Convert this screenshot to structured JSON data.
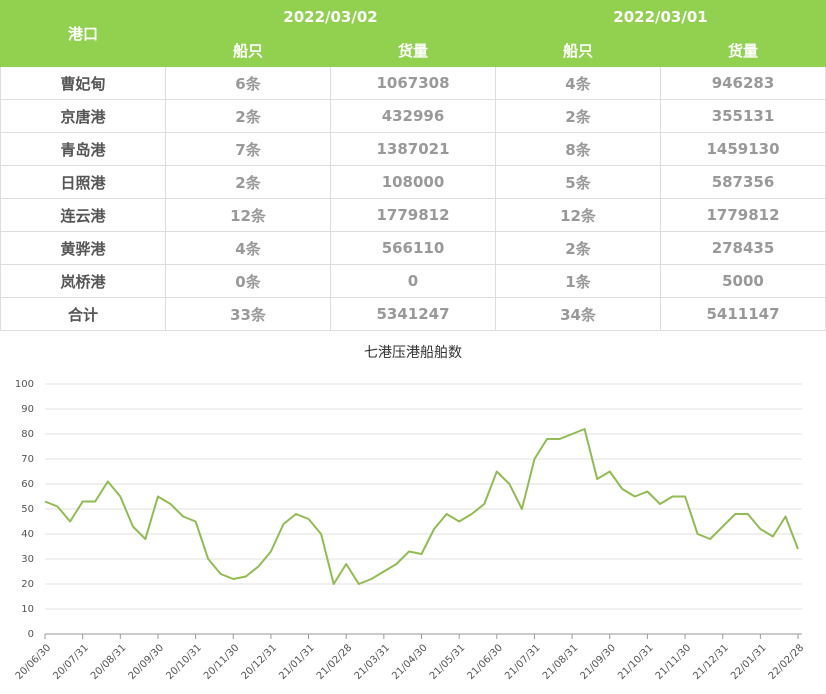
{
  "table": {
    "header": {
      "port": "港口",
      "dates": [
        "2022/03/02",
        "2022/03/01"
      ],
      "sub": [
        "船只",
        "货量",
        "船只",
        "货量"
      ]
    },
    "rows": [
      [
        "曹妃甸",
        "6条",
        1067308,
        "4条",
        946283
      ],
      [
        "京唐港",
        "2条",
        432996,
        "2条",
        355131
      ],
      [
        "青岛港",
        "7条",
        1387021,
        "8条",
        1459130
      ],
      [
        "日照港",
        "2条",
        108000,
        "5条",
        587356
      ],
      [
        "连云港",
        "12条",
        1779812,
        "12条",
        1779812
      ],
      [
        "黄骅港",
        "4条",
        566110,
        "2条",
        278435
      ],
      [
        "岚桥港",
        "0条",
        0,
        "1条",
        5000
      ],
      [
        "合计",
        "33条",
        5341247,
        "34条",
        5411147
      ]
    ]
  },
  "chart_data": {
    "type": "line",
    "title": "七港压港船舶数",
    "color": "#92bc53",
    "grid": true,
    "ylim": [
      0,
      100
    ],
    "yticks": [
      0,
      10,
      20,
      30,
      40,
      50,
      60,
      70,
      80,
      90,
      100
    ],
    "categories": [
      "20/06/30",
      null,
      null,
      "20/07/31",
      null,
      null,
      "20/08/31",
      null,
      null,
      "20/09/30",
      null,
      null,
      "20/10/31",
      null,
      null,
      "20/11/30",
      null,
      null,
      "20/12/31",
      null,
      null,
      "21/01/31",
      null,
      null,
      "21/02/28",
      null,
      null,
      "21/03/31",
      null,
      null,
      "21/04/30",
      null,
      null,
      "21/05/31",
      null,
      null,
      "21/06/30",
      null,
      null,
      "21/07/31",
      null,
      null,
      "21/08/31",
      null,
      null,
      "21/09/30",
      null,
      null,
      "21/10/31",
      null,
      null,
      "21/11/30",
      null,
      null,
      "21/12/31",
      null,
      null,
      "22/01/31",
      null,
      null,
      "22/02/28"
    ],
    "values": [
      53,
      51,
      45,
      53,
      53,
      61,
      55,
      43,
      38,
      55,
      52,
      47,
      45,
      30,
      24,
      22,
      23,
      27,
      33,
      44,
      48,
      46,
      40,
      20,
      28,
      20,
      22,
      25,
      28,
      33,
      32,
      42,
      48,
      45,
      48,
      52,
      65,
      60,
      50,
      70,
      78,
      78,
      80,
      82,
      62,
      65,
      58,
      55,
      57,
      52,
      55,
      55,
      40,
      38,
      43,
      48,
      48,
      42,
      39,
      47,
      34
    ]
  }
}
